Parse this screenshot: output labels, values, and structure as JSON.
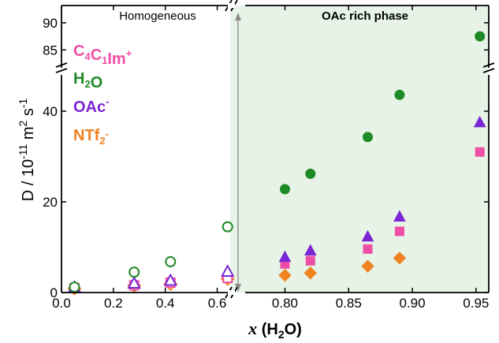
{
  "chart_data": {
    "type": "scatter",
    "title": "",
    "regions": {
      "left": "Homogeneous",
      "right": "OAc rich phase"
    },
    "xlabel": {
      "var": "x",
      "paren_open": " (H",
      "sub": "2",
      "paren_close": "O)"
    },
    "ylabel": {
      "prefix": "D / 10",
      "exp1": "-11",
      "mid": " m",
      "exp2": "2",
      "mid2": " s",
      "exp3": "-1"
    },
    "x_axis": {
      "segments": [
        {
          "range": [
            0.0,
            0.65
          ],
          "ticks": [
            "0.0",
            "0.2",
            "0.4",
            "0.6"
          ],
          "tick_values": [
            0.0,
            0.2,
            0.4,
            0.6
          ]
        },
        {
          "range": [
            0.77,
            0.96
          ],
          "ticks": [
            "0.80",
            "0.85",
            "0.90",
            "0.95"
          ],
          "tick_values": [
            0.8,
            0.85,
            0.9,
            0.95
          ]
        }
      ]
    },
    "y_axis": {
      "segments": [
        {
          "range": [
            0,
            48
          ],
          "ticks": [
            "0",
            "20",
            "40"
          ],
          "tick_values": [
            0,
            20,
            40
          ]
        },
        {
          "range": [
            82,
            91
          ],
          "ticks": [
            "85",
            "90"
          ],
          "tick_values": [
            85,
            90
          ]
        }
      ]
    },
    "shaded_region_start_x": 0.65,
    "series": [
      {
        "name": "H2O",
        "legend": {
          "base": "H",
          "sub": "2",
          "tail": "O"
        },
        "color": "#1e8a25",
        "marker": "circle",
        "points": [
          {
            "x": 0.05,
            "y": 1.2,
            "open": true
          },
          {
            "x": 0.28,
            "y": 4.5,
            "open": true
          },
          {
            "x": 0.42,
            "y": 6.8,
            "open": true
          },
          {
            "x": 0.64,
            "y": 14.5,
            "open": true
          },
          {
            "x": 0.8,
            "y": 22.8,
            "open": false
          },
          {
            "x": 0.82,
            "y": 26.2,
            "open": false
          },
          {
            "x": 0.865,
            "y": 34.3,
            "open": false
          },
          {
            "x": 0.89,
            "y": 43.6,
            "open": false
          },
          {
            "x": 0.953,
            "y": 87.5,
            "open": false
          }
        ]
      },
      {
        "name": "C4C1Im+",
        "legend": {
          "parts": [
            [
              "C",
              ""
            ],
            [
              "4",
              "sub"
            ],
            [
              "C",
              ""
            ],
            [
              "1",
              "sub"
            ],
            [
              "Im",
              ""
            ],
            [
              "+",
              "sup"
            ]
          ]
        },
        "color": "#ee4fa6",
        "marker": "square",
        "points": [
          {
            "x": 0.05,
            "y": 1.0,
            "open": true
          },
          {
            "x": 0.28,
            "y": 1.6,
            "open": true
          },
          {
            "x": 0.42,
            "y": 2.2,
            "open": true
          },
          {
            "x": 0.64,
            "y": 3.2,
            "open": true
          },
          {
            "x": 0.8,
            "y": 6.3,
            "open": false
          },
          {
            "x": 0.82,
            "y": 7.0,
            "open": false
          },
          {
            "x": 0.865,
            "y": 9.6,
            "open": false
          },
          {
            "x": 0.89,
            "y": 13.5,
            "open": false
          },
          {
            "x": 0.953,
            "y": 31.0,
            "open": false
          }
        ]
      },
      {
        "name": "OAc-",
        "legend": {
          "base": "OAc",
          "sup": "-"
        },
        "color": "#7a26d6",
        "marker": "triangle",
        "points": [
          {
            "x": 0.05,
            "y": 1.1,
            "open": true
          },
          {
            "x": 0.28,
            "y": 2.0,
            "open": true
          },
          {
            "x": 0.42,
            "y": 2.6,
            "open": true
          },
          {
            "x": 0.64,
            "y": 4.6,
            "open": true
          },
          {
            "x": 0.8,
            "y": 7.8,
            "open": false
          },
          {
            "x": 0.82,
            "y": 9.2,
            "open": false
          },
          {
            "x": 0.865,
            "y": 12.3,
            "open": false
          },
          {
            "x": 0.89,
            "y": 16.7,
            "open": false
          },
          {
            "x": 0.953,
            "y": 37.5,
            "open": false
          }
        ]
      },
      {
        "name": "NTf2-",
        "legend": {
          "base": "NTf",
          "sub": "2",
          "sup": "-"
        },
        "color": "#f08221",
        "marker": "diamond",
        "points": [
          {
            "x": 0.05,
            "y": 0.9,
            "open": true
          },
          {
            "x": 0.28,
            "y": 1.5,
            "open": true
          },
          {
            "x": 0.42,
            "y": 1.9,
            "open": true
          },
          {
            "x": 0.64,
            "y": 3.0,
            "open": true
          },
          {
            "x": 0.8,
            "y": 3.8,
            "open": false
          },
          {
            "x": 0.82,
            "y": 4.3,
            "open": false
          },
          {
            "x": 0.865,
            "y": 5.8,
            "open": false
          },
          {
            "x": 0.89,
            "y": 7.6,
            "open": false
          },
          {
            "x": 0.953,
            "y": null,
            "open": false
          }
        ]
      }
    ],
    "colors": {
      "shade": "#e6f3e6",
      "axis": "#000000",
      "divider": "#8c8c8c"
    }
  }
}
